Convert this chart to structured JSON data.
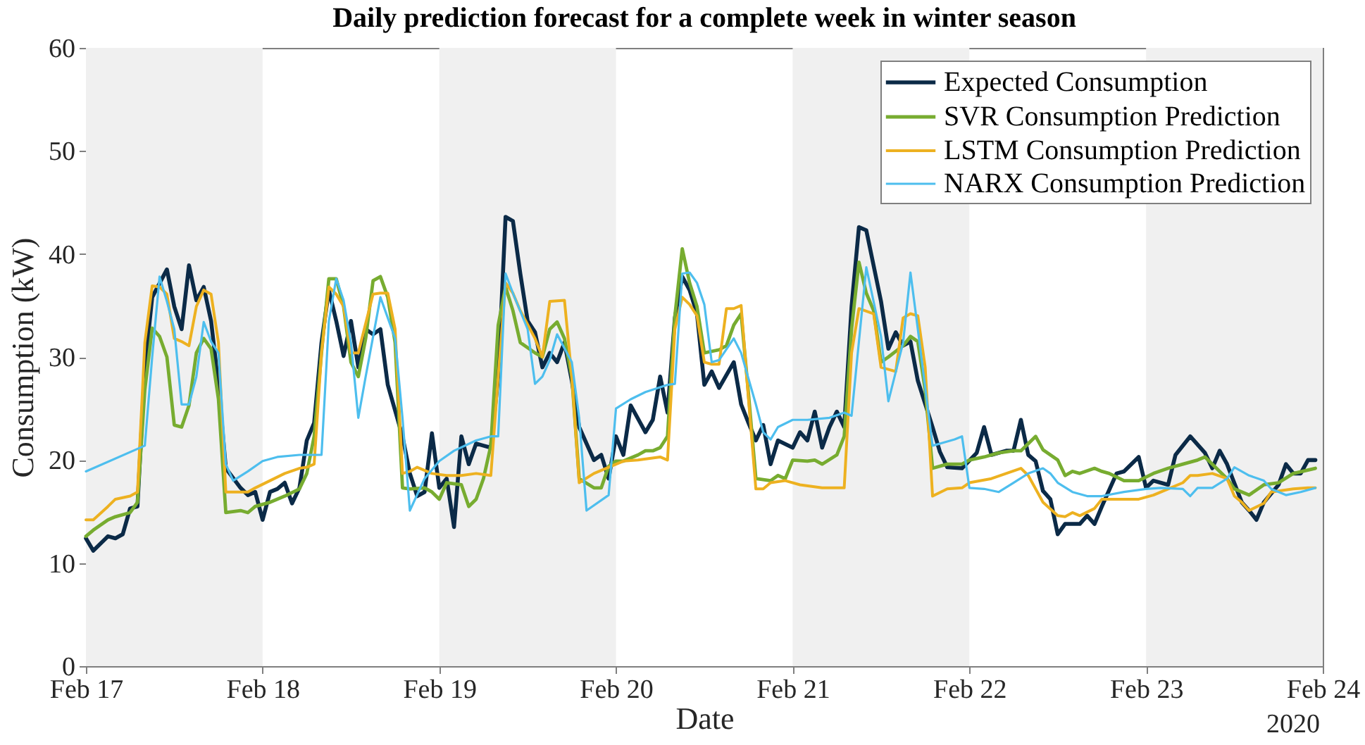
{
  "chart_data": {
    "type": "line",
    "title": "Daily prediction forecast for a complete week in winter season",
    "xlabel": "Date",
    "ylabel": "Consumption (kW)",
    "xlim": [
      "2020-02-17",
      "2020-02-24"
    ],
    "xticks": [
      {
        "value": "2020-02-17",
        "label": "Feb 17"
      },
      {
        "value": "2020-02-18",
        "label": "Feb 18"
      },
      {
        "value": "2020-02-19",
        "label": "Feb 19"
      },
      {
        "value": "2020-02-20",
        "label": "Feb 20"
      },
      {
        "value": "2020-02-21",
        "label": "Feb 21"
      },
      {
        "value": "2020-02-22",
        "label": "Feb 22"
      },
      {
        "value": "2020-02-23",
        "label": "Feb 23"
      },
      {
        "value": "2020-02-24",
        "label": "Feb 24"
      }
    ],
    "ylim": [
      0,
      60
    ],
    "yticks": [
      0,
      10,
      20,
      30,
      40,
      50,
      60
    ],
    "legend": "top right",
    "annotations": [
      "2020"
    ],
    "bands": [
      {
        "axis": "x",
        "from": "2020-02-17",
        "to": "2020-02-18",
        "color": "#f0f0f0"
      },
      {
        "axis": "x",
        "from": "2020-02-19",
        "to": "2020-02-20",
        "color": "#f0f0f0"
      },
      {
        "axis": "x",
        "from": "2020-02-21",
        "to": "2020-02-22",
        "color": "#f0f0f0"
      },
      {
        "axis": "x",
        "from": "2020-02-23",
        "to": "2020-02-24",
        "color": "#f0f0f0"
      }
    ],
    "series": [
      {
        "name": "Expected Consumption",
        "color": "#0b2a47",
        "x": [
          "2020-02-17T00:00",
          "2020-02-17T01:00",
          "2020-02-17T03:00",
          "2020-02-17T04:00",
          "2020-02-17T05:00",
          "2020-02-17T06:00",
          "2020-02-17T07:00",
          "2020-02-17T08:00",
          "2020-02-17T09:00",
          "2020-02-17T11:00",
          "2020-02-17T12:00",
          "2020-02-17T13:00",
          "2020-02-17T14:00",
          "2020-02-17T15:00",
          "2020-02-17T16:00",
          "2020-02-17T17:00",
          "2020-02-17T18:00",
          "2020-02-17T19:00",
          "2020-02-17T21:00",
          "2020-02-17T22:00",
          "2020-02-17T23:00",
          "2020-02-18T00:00",
          "2020-02-18T01:00",
          "2020-02-18T02:00",
          "2020-02-18T03:00",
          "2020-02-18T04:00",
          "2020-02-18T05:00",
          "2020-02-18T06:00",
          "2020-02-18T07:00",
          "2020-02-18T08:00",
          "2020-02-18T09:00",
          "2020-02-18T10:00",
          "2020-02-18T11:00",
          "2020-02-18T12:00",
          "2020-02-18T13:00",
          "2020-02-18T14:00",
          "2020-02-18T15:00",
          "2020-02-18T16:00",
          "2020-02-18T17:00",
          "2020-02-18T19:00",
          "2020-02-18T20:00",
          "2020-02-18T21:00",
          "2020-02-18T22:00",
          "2020-02-18T23:00",
          "2020-02-19T00:00",
          "2020-02-19T01:00",
          "2020-02-19T02:00",
          "2020-02-19T03:00",
          "2020-02-19T04:00",
          "2020-02-19T05:00",
          "2020-02-19T06:00",
          "2020-02-19T07:00",
          "2020-02-19T08:00",
          "2020-02-19T09:00",
          "2020-02-19T10:00",
          "2020-02-19T11:00",
          "2020-02-19T12:00",
          "2020-02-19T13:00",
          "2020-02-19T14:00",
          "2020-02-19T15:00",
          "2020-02-19T16:00",
          "2020-02-19T17:00",
          "2020-02-19T18:00",
          "2020-02-19T19:00",
          "2020-02-19T21:00",
          "2020-02-19T22:00",
          "2020-02-19T23:00",
          "2020-02-20T00:00",
          "2020-02-20T01:00",
          "2020-02-20T02:00",
          "2020-02-20T04:00",
          "2020-02-20T05:00",
          "2020-02-20T06:00",
          "2020-02-20T07:00",
          "2020-02-20T08:00",
          "2020-02-20T09:00",
          "2020-02-20T10:00",
          "2020-02-20T11:00",
          "2020-02-20T12:00",
          "2020-02-20T13:00",
          "2020-02-20T14:00",
          "2020-02-20T16:00",
          "2020-02-20T17:00",
          "2020-02-20T18:00",
          "2020-02-20T19:00",
          "2020-02-20T20:00",
          "2020-02-20T21:00",
          "2020-02-20T22:00",
          "2020-02-21T00:00",
          "2020-02-21T01:00",
          "2020-02-21T02:00",
          "2020-02-21T03:00",
          "2020-02-21T04:00",
          "2020-02-21T05:00",
          "2020-02-21T06:00",
          "2020-02-21T07:00",
          "2020-02-21T08:00",
          "2020-02-21T09:00",
          "2020-02-21T10:00",
          "2020-02-21T12:00",
          "2020-02-21T13:00",
          "2020-02-21T14:00",
          "2020-02-21T15:00",
          "2020-02-21T16:00",
          "2020-02-21T17:00",
          "2020-02-21T19:00",
          "2020-02-21T20:00",
          "2020-02-21T21:00",
          "2020-02-21T23:00",
          "2020-02-22T01:00",
          "2020-02-22T02:00",
          "2020-02-22T03:00",
          "2020-02-22T05:00",
          "2020-02-22T06:00",
          "2020-02-22T07:00",
          "2020-02-22T08:00",
          "2020-02-22T09:00",
          "2020-02-22T10:00",
          "2020-02-22T11:00",
          "2020-02-22T12:00",
          "2020-02-22T13:00",
          "2020-02-22T15:00",
          "2020-02-22T16:00",
          "2020-02-22T17:00",
          "2020-02-22T18:00",
          "2020-02-22T20:00",
          "2020-02-22T21:00",
          "2020-02-22T23:00",
          "2020-02-23T00:00",
          "2020-02-23T01:00",
          "2020-02-23T03:00",
          "2020-02-23T04:00",
          "2020-02-23T06:00",
          "2020-02-23T08:00",
          "2020-02-23T09:00",
          "2020-02-23T10:00",
          "2020-02-23T11:00",
          "2020-02-23T13:00",
          "2020-02-23T14:00",
          "2020-02-23T15:00",
          "2020-02-23T16:00",
          "2020-02-23T18:00",
          "2020-02-23T19:00",
          "2020-02-23T20:00",
          "2020-02-23T21:00",
          "2020-02-23T22:00",
          "2020-02-23T23:00"
        ],
        "values": [
          12.4,
          11.2,
          12.6,
          12.4,
          12.8,
          15.3,
          15.5,
          29,
          35.8,
          38.5,
          34.9,
          32.7,
          38.9,
          35.5,
          36.8,
          33.5,
          27.3,
          19.2,
          17.3,
          16.6,
          16.9,
          14.2,
          16.9,
          17.2,
          17.8,
          15.8,
          17.3,
          21.9,
          23.6,
          31.4,
          36.5,
          33.5,
          30.1,
          33.5,
          29,
          32.7,
          32.2,
          32.7,
          27.3,
          22.3,
          18.7,
          16.5,
          16.9,
          22.6,
          17.3,
          18.2,
          13.5,
          22.3,
          19.6,
          21.6,
          21.4,
          21.2,
          28.1,
          43.6,
          43.2,
          38.1,
          33.5,
          32.4,
          29,
          30.4,
          29.5,
          31.4,
          27.7,
          23.2,
          20,
          20.5,
          18.2,
          22.3,
          20.5,
          25.3,
          22.7,
          23.9,
          28.1,
          24.6,
          33.8,
          37.8,
          36.5,
          34.2,
          27.3,
          28.6,
          27,
          29.5,
          25.4,
          23.6,
          21.9,
          23.4,
          19.6,
          21.9,
          21.2,
          22.7,
          21.9,
          24.7,
          21.2,
          23.2,
          24.7,
          23.2,
          34.9,
          42.6,
          42.3,
          35.4,
          30.8,
          32.4,
          31.1,
          31.5,
          27.7,
          23.2,
          20.8,
          19.3,
          19.2,
          20.7,
          23.2,
          20.5,
          20.9,
          20.9,
          23.9,
          20.5,
          19.9,
          17,
          16.2,
          12.8,
          13.8,
          13.8,
          14.6,
          13.8,
          15.5,
          18.7,
          18.9,
          20.3,
          17.3,
          18,
          17.6,
          20.5,
          22.3,
          20.7,
          19.2,
          20.9,
          19.6,
          15.9,
          15.1,
          14.2,
          15.9,
          17.6,
          19.6,
          18.7,
          18.7,
          20,
          20
        ]
      },
      {
        "name": "SVR Consumption Prediction",
        "color": "#77ac30",
        "x": [
          "2020-02-17T00:00",
          "2020-02-17T01:00",
          "2020-02-17T03:00",
          "2020-02-17T04:00",
          "2020-02-17T06:00",
          "2020-02-17T07:00",
          "2020-02-17T08:00",
          "2020-02-17T09:00",
          "2020-02-17T10:00",
          "2020-02-17T11:00",
          "2020-02-17T12:00",
          "2020-02-17T13:00",
          "2020-02-17T14:00",
          "2020-02-17T15:00",
          "2020-02-17T16:00",
          "2020-02-17T17:00",
          "2020-02-17T18:00",
          "2020-02-17T19:00",
          "2020-02-17T21:00",
          "2020-02-17T22:00",
          "2020-02-17T23:00",
          "2020-02-18T01:00",
          "2020-02-18T03:00",
          "2020-02-18T05:00",
          "2020-02-18T06:00",
          "2020-02-18T07:00",
          "2020-02-18T08:00",
          "2020-02-18T09:00",
          "2020-02-18T10:00",
          "2020-02-18T11:00",
          "2020-02-18T12:00",
          "2020-02-18T13:00",
          "2020-02-18T14:00",
          "2020-02-18T15:00",
          "2020-02-18T16:00",
          "2020-02-18T17:00",
          "2020-02-18T18:00",
          "2020-02-18T19:00",
          "2020-02-18T20:00",
          "2020-02-18T22:00",
          "2020-02-18T23:00",
          "2020-02-19T00:00",
          "2020-02-19T01:00",
          "2020-02-19T03:00",
          "2020-02-19T04:00",
          "2020-02-19T05:00",
          "2020-02-19T06:00",
          "2020-02-19T07:00",
          "2020-02-19T08:00",
          "2020-02-19T09:00",
          "2020-02-19T10:00",
          "2020-02-19T11:00",
          "2020-02-19T13:00",
          "2020-02-19T14:00",
          "2020-02-19T15:00",
          "2020-02-19T16:00",
          "2020-02-19T17:00",
          "2020-02-19T18:00",
          "2020-02-19T19:00",
          "2020-02-19T21:00",
          "2020-02-19T22:00",
          "2020-02-19T23:00",
          "2020-02-20T00:00",
          "2020-02-20T01:00",
          "2020-02-20T03:00",
          "2020-02-20T04:00",
          "2020-02-20T05:00",
          "2020-02-20T06:00",
          "2020-02-20T07:00",
          "2020-02-20T08:00",
          "2020-02-20T09:00",
          "2020-02-20T10:00",
          "2020-02-20T11:00",
          "2020-02-20T12:00",
          "2020-02-20T14:00",
          "2020-02-20T15:00",
          "2020-02-20T16:00",
          "2020-02-20T17:00",
          "2020-02-20T18:00",
          "2020-02-20T19:00",
          "2020-02-20T21:00",
          "2020-02-20T22:00",
          "2020-02-20T23:00",
          "2020-02-21T00:00",
          "2020-02-21T02:00",
          "2020-02-21T03:00",
          "2020-02-21T04:00",
          "2020-02-21T06:00",
          "2020-02-21T07:00",
          "2020-02-21T08:00",
          "2020-02-21T09:00",
          "2020-02-21T10:00",
          "2020-02-21T11:00",
          "2020-02-21T12:00",
          "2020-02-21T13:00",
          "2020-02-21T15:00",
          "2020-02-21T16:00",
          "2020-02-21T17:00",
          "2020-02-21T18:00",
          "2020-02-21T19:00",
          "2020-02-21T21:00",
          "2020-02-21T23:00",
          "2020-02-22T00:00",
          "2020-02-22T02:00",
          "2020-02-22T04:00",
          "2020-02-22T06:00",
          "2020-02-22T07:00",
          "2020-02-22T09:00",
          "2020-02-22T10:00",
          "2020-02-22T12:00",
          "2020-02-22T13:00",
          "2020-02-22T14:00",
          "2020-02-22T15:00",
          "2020-02-22T17:00",
          "2020-02-22T18:00",
          "2020-02-22T19:00",
          "2020-02-22T21:00",
          "2020-02-22T23:00",
          "2020-02-23T01:00",
          "2020-02-23T03:00",
          "2020-02-23T05:00",
          "2020-02-23T07:00",
          "2020-02-23T08:00",
          "2020-02-23T09:00",
          "2020-02-23T11:00",
          "2020-02-23T12:00",
          "2020-02-23T14:00",
          "2020-02-23T16:00",
          "2020-02-23T18:00",
          "2020-02-23T20:00",
          "2020-02-23T23:00"
        ],
        "values": [
          12.6,
          13.2,
          14.2,
          14.5,
          14.9,
          15.9,
          26.8,
          32.8,
          32,
          30,
          23.4,
          23.2,
          25.3,
          30.4,
          31.8,
          30.8,
          25.9,
          14.9,
          15.1,
          14.9,
          15.5,
          15.9,
          16.5,
          17.2,
          18.7,
          22.3,
          30.4,
          37.6,
          37.6,
          34.9,
          29.5,
          28.1,
          31.8,
          37.4,
          37.8,
          35.8,
          31.4,
          17.3,
          17.2,
          17.3,
          16.9,
          16.2,
          17.8,
          17.6,
          15.5,
          16.2,
          18.2,
          21.4,
          33.1,
          36.8,
          34.5,
          31.4,
          30.4,
          30,
          32.7,
          33.4,
          31.8,
          28.1,
          18.2,
          17.3,
          17.3,
          19.4,
          19.9,
          19.9,
          20.5,
          20.9,
          20.9,
          21.2,
          22.3,
          34,
          40.5,
          37.2,
          34.9,
          30.4,
          30.7,
          31.1,
          33.1,
          34.2,
          26.4,
          18.2,
          18,
          18.5,
          18.2,
          20,
          19.9,
          20,
          19.6,
          20.5,
          22.3,
          32.7,
          39.2,
          36.2,
          34.5,
          29.5,
          30,
          31.1,
          32,
          31.5,
          26.8,
          19.2,
          19.6,
          19.6,
          20,
          20.3,
          20.7,
          20.9,
          20.9,
          22.3,
          21,
          20,
          18.5,
          18.9,
          18.7,
          19.2,
          18.9,
          18.7,
          18,
          18,
          18.7,
          19.2,
          19.6,
          20,
          20.3,
          19.6,
          18.2,
          17.2,
          16.6,
          17.6,
          17.8,
          18.7,
          19.2
        ]
      },
      {
        "name": "LSTM Consumption Prediction",
        "color": "#edb120",
        "x": [
          "2020-02-17T00:00",
          "2020-02-17T01:00",
          "2020-02-17T03:00",
          "2020-02-17T04:00",
          "2020-02-17T06:00",
          "2020-02-17T07:00",
          "2020-02-17T08:00",
          "2020-02-17T09:00",
          "2020-02-17T10:00",
          "2020-02-17T11:00",
          "2020-02-17T12:00",
          "2020-02-17T13:00",
          "2020-02-17T14:00",
          "2020-02-17T15:00",
          "2020-02-17T16:00",
          "2020-02-17T17:00",
          "2020-02-17T18:00",
          "2020-02-17T19:00",
          "2020-02-17T21:00",
          "2020-02-17T22:00",
          "2020-02-17T23:00",
          "2020-02-18T01:00",
          "2020-02-18T03:00",
          "2020-02-18T05:00",
          "2020-02-18T06:00",
          "2020-02-18T07:00",
          "2020-02-18T08:00",
          "2020-02-18T09:00",
          "2020-02-18T10:00",
          "2020-02-18T11:00",
          "2020-02-18T12:00",
          "2020-02-18T13:00",
          "2020-02-18T15:00",
          "2020-02-18T16:00",
          "2020-02-18T17:00",
          "2020-02-18T18:00",
          "2020-02-18T19:00",
          "2020-02-18T20:00",
          "2020-02-18T21:00",
          "2020-02-18T23:00",
          "2020-02-19T01:00",
          "2020-02-19T03:00",
          "2020-02-19T05:00",
          "2020-02-19T07:00",
          "2020-02-19T08:00",
          "2020-02-19T09:00",
          "2020-02-19T10:00",
          "2020-02-19T11:00",
          "2020-02-19T13:00",
          "2020-02-19T14:00",
          "2020-02-19T15:00",
          "2020-02-19T17:00",
          "2020-02-19T18:00",
          "2020-02-19T19:00",
          "2020-02-19T21:00",
          "2020-02-19T23:00",
          "2020-02-20T01:00",
          "2020-02-20T03:00",
          "2020-02-20T06:00",
          "2020-02-20T07:00",
          "2020-02-20T08:00",
          "2020-02-20T09:00",
          "2020-02-20T10:00",
          "2020-02-20T11:00",
          "2020-02-20T12:00",
          "2020-02-20T13:00",
          "2020-02-20T14:00",
          "2020-02-20T15:00",
          "2020-02-20T16:00",
          "2020-02-20T17:00",
          "2020-02-20T18:00",
          "2020-02-20T19:00",
          "2020-02-20T20:00",
          "2020-02-20T21:00",
          "2020-02-20T23:00",
          "2020-02-21T01:00",
          "2020-02-21T04:00",
          "2020-02-21T06:00",
          "2020-02-21T07:00",
          "2020-02-21T08:00",
          "2020-02-21T09:00",
          "2020-02-21T11:00",
          "2020-02-21T12:00",
          "2020-02-21T14:00",
          "2020-02-21T15:00",
          "2020-02-21T16:00",
          "2020-02-21T17:00",
          "2020-02-21T18:00",
          "2020-02-21T19:00",
          "2020-02-21T21:00",
          "2020-02-21T23:00",
          "2020-02-22T00:00",
          "2020-02-22T03:00",
          "2020-02-22T05:00",
          "2020-02-22T07:00",
          "2020-02-22T08:00",
          "2020-02-22T10:00",
          "2020-02-22T12:00",
          "2020-02-22T13:00",
          "2020-02-22T14:00",
          "2020-02-22T15:00",
          "2020-02-22T17:00",
          "2020-02-22T18:00",
          "2020-02-22T20:00",
          "2020-02-22T23:00",
          "2020-02-23T01:00",
          "2020-02-23T03:00",
          "2020-02-23T05:00",
          "2020-02-23T06:00",
          "2020-02-23T07:00",
          "2020-02-23T09:00",
          "2020-02-23T11:00",
          "2020-02-23T12:00",
          "2020-02-23T13:00",
          "2020-02-23T14:00",
          "2020-02-23T16:00",
          "2020-02-23T17:00",
          "2020-02-23T20:00",
          "2020-02-23T22:00",
          "2020-02-23T23:00"
        ],
        "values": [
          14.2,
          14.2,
          15.5,
          16.2,
          16.5,
          16.9,
          31.4,
          36.9,
          36.8,
          36.1,
          31.8,
          31.5,
          31.1,
          34.9,
          36.5,
          36.1,
          31.4,
          16.9,
          16.9,
          16.9,
          17.3,
          18,
          18.7,
          19.2,
          19.3,
          19.6,
          30.4,
          36.8,
          36.1,
          34.9,
          30.4,
          30.4,
          36.1,
          36.2,
          36.2,
          32.7,
          18.7,
          18.9,
          19.3,
          18.7,
          18.5,
          18.5,
          18.7,
          18.5,
          28.1,
          37.2,
          36.2,
          34.5,
          31.8,
          30,
          35.4,
          35.5,
          28.1,
          17.8,
          18.7,
          19.3,
          19.9,
          20,
          20.3,
          20,
          32.7,
          35.8,
          35.1,
          34,
          29.5,
          29.3,
          29.3,
          34.7,
          34.7,
          35,
          25.9,
          17.2,
          17.2,
          17.8,
          18,
          17.6,
          17.3,
          17.3,
          17.3,
          30.4,
          34.7,
          34.2,
          29,
          28.6,
          33.8,
          34.2,
          34,
          29,
          16.5,
          17.2,
          17.3,
          17.8,
          18.2,
          18.7,
          19.2,
          18.5,
          15.9,
          14.6,
          14.5,
          14.9,
          14.6,
          15.3,
          16.2,
          16.2,
          16.2,
          16.6,
          17.2,
          17.8,
          18.5,
          18.5,
          18.7,
          18.2,
          16.5,
          15.9,
          15.1,
          15.8,
          16.9,
          17.2,
          17.3,
          17.3
        ]
      },
      {
        "name": "NARX Consumption Prediction",
        "color": "#4dbeee",
        "x": [
          "2020-02-17T00:00",
          "2020-02-17T08:00",
          "2020-02-17T09:00",
          "2020-02-17T10:00",
          "2020-02-17T11:00",
          "2020-02-17T12:00",
          "2020-02-17T13:00",
          "2020-02-17T14:00",
          "2020-02-17T15:00",
          "2020-02-17T16:00",
          "2020-02-17T17:00",
          "2020-02-17T18:00",
          "2020-02-17T19:00",
          "2020-02-17T20:00",
          "2020-02-17T22:00",
          "2020-02-18T00:00",
          "2020-02-18T02:00",
          "2020-02-18T05:00",
          "2020-02-18T08:00",
          "2020-02-18T09:00",
          "2020-02-18T10:00",
          "2020-02-18T11:00",
          "2020-02-18T12:00",
          "2020-02-18T13:00",
          "2020-02-18T14:00",
          "2020-02-18T16:00",
          "2020-02-18T18:00",
          "2020-02-18T19:00",
          "2020-02-18T20:00",
          "2020-02-18T22:00",
          "2020-02-19T00:00",
          "2020-02-19T02:00",
          "2020-02-19T05:00",
          "2020-02-19T07:00",
          "2020-02-19T08:00",
          "2020-02-19T09:00",
          "2020-02-19T10:00",
          "2020-02-19T12:00",
          "2020-02-19T13:00",
          "2020-02-19T14:00",
          "2020-02-19T15:00",
          "2020-02-19T16:00",
          "2020-02-19T18:00",
          "2020-02-19T19:00",
          "2020-02-19T20:00",
          "2020-02-19T23:00",
          "2020-02-20T00:00",
          "2020-02-20T02:00",
          "2020-02-20T04:00",
          "2020-02-20T07:00",
          "2020-02-20T08:00",
          "2020-02-20T09:00",
          "2020-02-20T10:00",
          "2020-02-20T11:00",
          "2020-02-20T12:00",
          "2020-02-20T13:00",
          "2020-02-20T14:00",
          "2020-02-20T16:00",
          "2020-02-20T17:00",
          "2020-02-20T19:00",
          "2020-02-20T20:00",
          "2020-02-20T21:00",
          "2020-02-20T22:00",
          "2020-02-21T00:00",
          "2020-02-21T02:00",
          "2020-02-21T05:00",
          "2020-02-21T07:00",
          "2020-02-21T08:00",
          "2020-02-21T10:00",
          "2020-02-21T12:00",
          "2020-02-21T13:00",
          "2020-02-21T15:00",
          "2020-02-21T16:00",
          "2020-02-21T17:00",
          "2020-02-21T19:00",
          "2020-02-21T20:00",
          "2020-02-21T22:00",
          "2020-02-21T23:00",
          "2020-02-22T00:00",
          "2020-02-22T02:00",
          "2020-02-22T04:00",
          "2020-02-22T06:00",
          "2020-02-22T08:00",
          "2020-02-22T10:00",
          "2020-02-22T11:00",
          "2020-02-22T12:00",
          "2020-02-22T14:00",
          "2020-02-22T16:00",
          "2020-02-22T18:00",
          "2020-02-22T21:00",
          "2020-02-23T00:00",
          "2020-02-23T02:00",
          "2020-02-23T05:00",
          "2020-02-23T06:00",
          "2020-02-23T07:00",
          "2020-02-23T09:00",
          "2020-02-23T11:00",
          "2020-02-23T12:00",
          "2020-02-23T14:00",
          "2020-02-23T16:00",
          "2020-02-23T17:00",
          "2020-02-23T19:00",
          "2020-02-23T21:00",
          "2020-02-23T23:00"
        ],
        "values": [
          18.9,
          21.4,
          30,
          37.8,
          35.4,
          32.7,
          25.4,
          25.4,
          28.1,
          33.4,
          31.5,
          30.4,
          19.6,
          18,
          18.9,
          19.9,
          20.3,
          20.5,
          20.5,
          33.5,
          37.6,
          35.5,
          31.4,
          24.1,
          28.1,
          35.8,
          31.8,
          24.1,
          15.1,
          18.2,
          19.9,
          20.9,
          21.9,
          22.3,
          22.3,
          38.1,
          36.2,
          32.7,
          27.4,
          28.1,
          29.7,
          32.2,
          29.5,
          24.1,
          15.1,
          16.6,
          25,
          25.9,
          26.6,
          27.3,
          27.4,
          38.1,
          38.2,
          37.2,
          35.1,
          29.5,
          29.7,
          31.8,
          30.4,
          25.4,
          22.7,
          22,
          23.2,
          23.9,
          23.9,
          24.1,
          24.6,
          24.3,
          38.7,
          32,
          25.7,
          31.4,
          38.2,
          32.7,
          21.4,
          21.6,
          22,
          22.3,
          17.3,
          17.2,
          16.9,
          17.8,
          18.7,
          19.2,
          18.7,
          17.8,
          16.9,
          16.5,
          16.5,
          16.9,
          17.2,
          17.3,
          17.2,
          16.5,
          17.3,
          17.3,
          18.2,
          19.3,
          18.5,
          18,
          17.2,
          16.6,
          16.9,
          17.3
        ]
      }
    ]
  }
}
